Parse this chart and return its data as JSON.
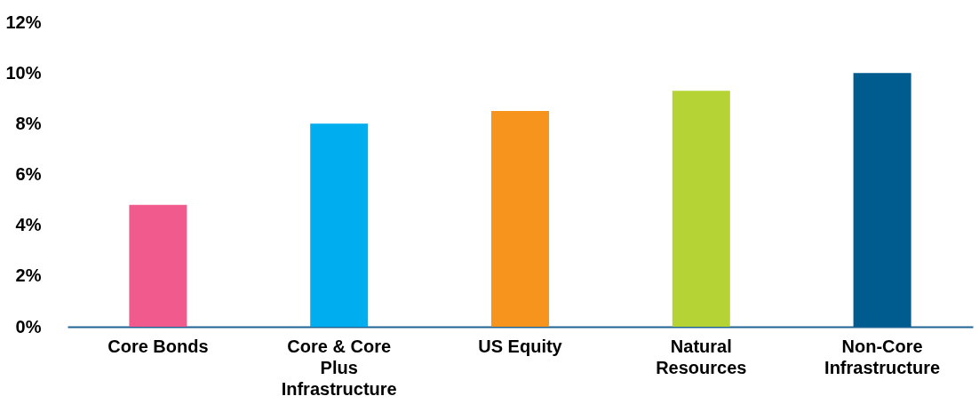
{
  "chart_data": {
    "type": "bar",
    "categories": [
      "Core Bonds",
      "Core & Core Plus Infrastructure",
      "US Equity",
      "Natural Resources",
      "Non-Core Infrastructure"
    ],
    "values": [
      4.8,
      8.0,
      8.5,
      9.3,
      10.0
    ],
    "colors": [
      "#f05a8c",
      "#00aeef",
      "#f7941d",
      "#b5d334",
      "#005b8e"
    ],
    "ylim": [
      0,
      12
    ],
    "yticks": [
      {
        "value": 0,
        "label": "0%"
      },
      {
        "value": 2,
        "label": "2%"
      },
      {
        "value": 4,
        "label": "4%"
      },
      {
        "value": 6,
        "label": "6%"
      },
      {
        "value": 8,
        "label": "8%"
      },
      {
        "value": 10,
        "label": "10%"
      },
      {
        "value": 12,
        "label": "12%"
      }
    ],
    "grid": false
  }
}
